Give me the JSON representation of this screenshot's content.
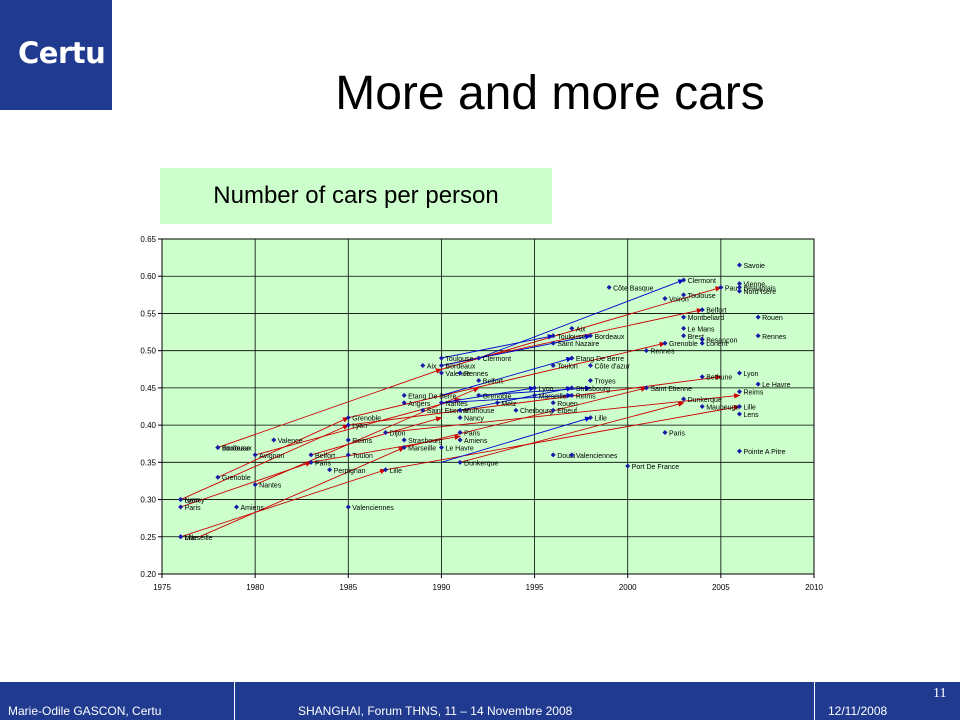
{
  "logo": {
    "text": "Certu"
  },
  "title": "More and more cars",
  "subtitle": "Number of cars per person",
  "footer": {
    "author": "Marie-Odile GASCON, Certu",
    "event": "SHANGHAI, Forum THNS, 11 – 14 Novembre 2008",
    "date": "12/11/2008",
    "page": "11"
  },
  "colors": {
    "brand": "#1f3a8f",
    "plot_bg": "#ccffcc",
    "points": "#1a1aa6",
    "arrow_red": "#cc0000",
    "arrow_blue": "#0000cc"
  },
  "chart_data": {
    "type": "scatter",
    "title": "",
    "xlabel": "",
    "ylabel": "",
    "xlim": [
      1975,
      2010
    ],
    "ylim": [
      0.2,
      0.65
    ],
    "xticks": [
      "1975",
      "1980",
      "1985",
      "1990",
      "1995",
      "2000",
      "2005",
      "2010"
    ],
    "yticks": [
      "0.20",
      "0.25",
      "0.30",
      "0.35",
      "0.40",
      "0.45",
      "0.50",
      "0.55",
      "0.60",
      "0.65"
    ],
    "grid": true,
    "points": [
      {
        "label": "Toulouse",
        "x": 1978,
        "y": 0.37
      },
      {
        "label": "Bordeaux",
        "x": 1978,
        "y": 0.37
      },
      {
        "label": "Grenoble",
        "x": 1978,
        "y": 0.33
      },
      {
        "label": "Nancy",
        "x": 1976,
        "y": 0.3
      },
      {
        "label": "Lyon",
        "x": 1976,
        "y": 0.3
      },
      {
        "label": "Paris",
        "x": 1976,
        "y": 0.29
      },
      {
        "label": "Marseille",
        "x": 1976,
        "y": 0.25
      },
      {
        "label": "Lille",
        "x": 1976,
        "y": 0.25
      },
      {
        "label": "Valence",
        "x": 1981,
        "y": 0.38
      },
      {
        "label": "Avignon",
        "x": 1980,
        "y": 0.36
      },
      {
        "label": "Nantes",
        "x": 1980,
        "y": 0.32
      },
      {
        "label": "Amiens",
        "x": 1979,
        "y": 0.29
      },
      {
        "label": "Belfort",
        "x": 1983,
        "y": 0.36
      },
      {
        "label": "Paris",
        "x": 1983,
        "y": 0.35
      },
      {
        "label": "Perpignan",
        "x": 1984,
        "y": 0.34
      },
      {
        "label": "Valenciennes",
        "x": 1985,
        "y": 0.29
      },
      {
        "label": "Grenoble",
        "x": 1985,
        "y": 0.41
      },
      {
        "label": "Lyon",
        "x": 1985,
        "y": 0.4
      },
      {
        "label": "Reims",
        "x": 1985,
        "y": 0.38
      },
      {
        "label": "Toulon",
        "x": 1985,
        "y": 0.36
      },
      {
        "label": "Lille",
        "x": 1987,
        "y": 0.34
      },
      {
        "label": "Dijon",
        "x": 1987,
        "y": 0.39
      },
      {
        "label": "Strasbourg",
        "x": 1988,
        "y": 0.38
      },
      {
        "label": "Marseille",
        "x": 1988,
        "y": 0.37
      },
      {
        "label": "Etang De Berre",
        "x": 1988,
        "y": 0.44
      },
      {
        "label": "Angers",
        "x": 1988,
        "y": 0.43
      },
      {
        "label": "Saint Etienne",
        "x": 1989,
        "y": 0.42
      },
      {
        "label": "Mulhouse",
        "x": 1991,
        "y": 0.42
      },
      {
        "label": "Nantes",
        "x": 1990,
        "y": 0.43
      },
      {
        "label": "Nancy",
        "x": 1991,
        "y": 0.41
      },
      {
        "label": "Paris",
        "x": 1991,
        "y": 0.39
      },
      {
        "label": "Amiens",
        "x": 1991,
        "y": 0.38
      },
      {
        "label": "Le Havre",
        "x": 1990,
        "y": 0.37
      },
      {
        "label": "Dunkerque",
        "x": 1991,
        "y": 0.35
      },
      {
        "label": "Aix",
        "x": 1989,
        "y": 0.48
      },
      {
        "label": "Toulouse",
        "x": 1990,
        "y": 0.49
      },
      {
        "label": "Clermont",
        "x": 1992,
        "y": 0.49
      },
      {
        "label": "Bordeaux",
        "x": 1990,
        "y": 0.48
      },
      {
        "label": "Valence",
        "x": 1990,
        "y": 0.47
      },
      {
        "label": "Rennes",
        "x": 1991,
        "y": 0.47
      },
      {
        "label": "Belfort",
        "x": 1992,
        "y": 0.46
      },
      {
        "label": "Grenoble",
        "x": 1992,
        "y": 0.44
      },
      {
        "label": "Metz",
        "x": 1993,
        "y": 0.43
      },
      {
        "label": "Cherbourg",
        "x": 1994,
        "y": 0.42
      },
      {
        "label": "Lyon",
        "x": 1995,
        "y": 0.45
      },
      {
        "label": "Marseille",
        "x": 1995,
        "y": 0.44
      },
      {
        "label": "Rouen",
        "x": 1996,
        "y": 0.43
      },
      {
        "label": "Elbeuf",
        "x": 1996,
        "y": 0.42
      },
      {
        "label": "Reims",
        "x": 1997,
        "y": 0.44
      },
      {
        "label": "Strasbourg",
        "x": 1997,
        "y": 0.45
      },
      {
        "label": "Douai",
        "x": 1996,
        "y": 0.36
      },
      {
        "label": "Valenciennes",
        "x": 1997,
        "y": 0.36
      },
      {
        "label": "Lille",
        "x": 1998,
        "y": 0.41
      },
      {
        "label": "Troyes",
        "x": 1998,
        "y": 0.46
      },
      {
        "label": "Toulon",
        "x": 1996,
        "y": 0.48
      },
      {
        "label": "Etang De Berre",
        "x": 1997,
        "y": 0.49
      },
      {
        "label": "Côte d'azur",
        "x": 1998,
        "y": 0.48
      },
      {
        "label": "Toulouse",
        "x": 1996,
        "y": 0.52
      },
      {
        "label": "Saint Nazaire",
        "x": 1996,
        "y": 0.51
      },
      {
        "label": "Aix",
        "x": 1997,
        "y": 0.53
      },
      {
        "label": "Bordeaux",
        "x": 1998,
        "y": 0.52
      },
      {
        "label": "Côte Basque",
        "x": 1999,
        "y": 0.585
      },
      {
        "label": "Rennes",
        "x": 2001,
        "y": 0.5
      },
      {
        "label": "Saint Etienne",
        "x": 2001,
        "y": 0.45
      },
      {
        "label": "Port De France",
        "x": 2000,
        "y": 0.345
      },
      {
        "label": "Paris",
        "x": 2002,
        "y": 0.39
      },
      {
        "label": "Clermont",
        "x": 2003,
        "y": 0.595
      },
      {
        "label": "Voiron",
        "x": 2002,
        "y": 0.57
      },
      {
        "label": "Toulouse",
        "x": 2003,
        "y": 0.575
      },
      {
        "label": "Pau",
        "x": 2005,
        "y": 0.585
      },
      {
        "label": "Belfort",
        "x": 2004,
        "y": 0.555
      },
      {
        "label": "Montbeliard",
        "x": 2003,
        "y": 0.545
      },
      {
        "label": "Le Mans",
        "x": 2003,
        "y": 0.53
      },
      {
        "label": "Brest",
        "x": 2003,
        "y": 0.52
      },
      {
        "label": "Besançon",
        "x": 2004,
        "y": 0.515
      },
      {
        "label": "Lorient",
        "x": 2004,
        "y": 0.51
      },
      {
        "label": "Grenoble",
        "x": 2002,
        "y": 0.51
      },
      {
        "label": "Bethune",
        "x": 2004,
        "y": 0.465
      },
      {
        "label": "Dunkerque",
        "x": 2003,
        "y": 0.435
      },
      {
        "label": "Maubeuge",
        "x": 2004,
        "y": 0.425
      },
      {
        "label": "Savoie",
        "x": 2006,
        "y": 0.615
      },
      {
        "label": "Vienne",
        "x": 2006,
        "y": 0.59
      },
      {
        "label": "Beaujolais",
        "x": 2006,
        "y": 0.585
      },
      {
        "label": "Nord Isere",
        "x": 2006,
        "y": 0.58
      },
      {
        "label": "Rouen",
        "x": 2007,
        "y": 0.545
      },
      {
        "label": "Rennes",
        "x": 2007,
        "y": 0.52
      },
      {
        "label": "Lyon",
        "x": 2006,
        "y": 0.47
      },
      {
        "label": "Le Havre",
        "x": 2007,
        "y": 0.455
      },
      {
        "label": "Reims",
        "x": 2006,
        "y": 0.445
      },
      {
        "label": "Lille",
        "x": 2006,
        "y": 0.425
      },
      {
        "label": "Lens",
        "x": 2006,
        "y": 0.415
      },
      {
        "label": "Pointe A Pitre",
        "x": 2006,
        "y": 0.365
      }
    ],
    "arrows": [
      {
        "color": "red",
        "from": [
          1976,
          0.3
        ],
        "to": [
          1985,
          0.4
        ]
      },
      {
        "color": "red",
        "from": [
          1976,
          0.29
        ],
        "to": [
          1983,
          0.35
        ]
      },
      {
        "color": "red",
        "from": [
          1976,
          0.25
        ],
        "to": [
          1987,
          0.34
        ]
      },
      {
        "color": "red",
        "from": [
          1977,
          0.25
        ],
        "to": [
          1988,
          0.37
        ]
      },
      {
        "color": "red",
        "from": [
          1978,
          0.33
        ],
        "to": [
          1985,
          0.41
        ]
      },
      {
        "color": "red",
        "from": [
          1978,
          0.37
        ],
        "to": [
          1990,
          0.475
        ]
      },
      {
        "color": "red",
        "from": [
          1980,
          0.36
        ],
        "to": [
          1991,
          0.435
        ]
      },
      {
        "color": "red",
        "from": [
          1980,
          0.32
        ],
        "to": [
          1992,
          0.45
        ]
      },
      {
        "color": "red",
        "from": [
          1983,
          0.36
        ],
        "to": [
          1990,
          0.41
        ]
      },
      {
        "color": "red",
        "from": [
          1983,
          0.35
        ],
        "to": [
          1991,
          0.385
        ]
      },
      {
        "color": "red",
        "from": [
          1985,
          0.4
        ],
        "to": [
          2005,
          0.465
        ]
      },
      {
        "color": "red",
        "from": [
          1985,
          0.41
        ],
        "to": [
          2002,
          0.51
        ]
      },
      {
        "color": "red",
        "from": [
          1987,
          0.39
        ],
        "to": [
          2006,
          0.44
        ]
      },
      {
        "color": "red",
        "from": [
          1988,
          0.37
        ],
        "to": [
          2001,
          0.45
        ]
      },
      {
        "color": "red",
        "from": [
          1990,
          0.475
        ],
        "to": [
          2005,
          0.585
        ]
      },
      {
        "color": "red",
        "from": [
          1991,
          0.35
        ],
        "to": [
          2003,
          0.43
        ]
      },
      {
        "color": "red",
        "from": [
          1990,
          0.48
        ],
        "to": [
          2004,
          0.555
        ]
      },
      {
        "color": "red",
        "from": [
          1987,
          0.34
        ],
        "to": [
          2006,
          0.425
        ]
      },
      {
        "color": "blue",
        "from": [
          1990,
          0.49
        ],
        "to": [
          1996,
          0.52
        ]
      },
      {
        "color": "blue",
        "from": [
          1990,
          0.48
        ],
        "to": [
          1998,
          0.52
        ]
      },
      {
        "color": "blue",
        "from": [
          1990,
          0.44
        ],
        "to": [
          1997,
          0.49
        ]
      },
      {
        "color": "blue",
        "from": [
          1990,
          0.43
        ],
        "to": [
          1995,
          0.45
        ]
      },
      {
        "color": "blue",
        "from": [
          1990,
          0.43
        ],
        "to": [
          1997,
          0.44
        ]
      },
      {
        "color": "blue",
        "from": [
          1990,
          0.35
        ],
        "to": [
          1998,
          0.41
        ]
      },
      {
        "color": "blue",
        "from": [
          1992,
          0.49
        ],
        "to": [
          2003,
          0.595
        ]
      },
      {
        "color": "blue",
        "from": [
          1992,
          0.44
        ],
        "to": [
          1998,
          0.45
        ]
      },
      {
        "color": "blue",
        "from": [
          1991,
          0.42
        ],
        "to": [
          1997,
          0.45
        ]
      }
    ]
  }
}
